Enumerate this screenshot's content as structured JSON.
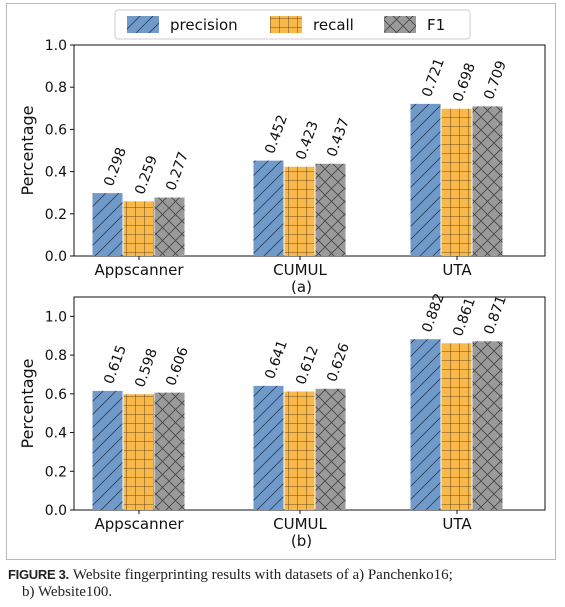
{
  "chart_data": [
    {
      "type": "bar",
      "categories": [
        "Appscanner",
        "CUMUL",
        "UTA"
      ],
      "series": [
        {
          "name": "precision",
          "values": [
            0.298,
            0.452,
            0.721
          ]
        },
        {
          "name": "recall",
          "values": [
            0.259,
            0.423,
            0.698
          ]
        },
        {
          "name": "F1",
          "values": [
            0.277,
            0.437,
            0.709
          ]
        }
      ],
      "value_labels": [
        [
          "0.298",
          "0.452",
          "0.721"
        ],
        [
          "0.259",
          "0.423",
          "0.698"
        ],
        [
          "0.277",
          "0.437",
          "0.709"
        ]
      ],
      "subtitle": "(a)",
      "ylabel": "Percentage",
      "ylim": [
        0,
        1.0
      ],
      "yticks": [
        "0.0",
        "0.2",
        "0.4",
        "0.6",
        "0.8",
        "1.0"
      ],
      "legend_position": "top-center",
      "colors": [
        "#6f9ac9",
        "#f9b94a",
        "#9a9a9a"
      ],
      "hatches": [
        "diagonal",
        "grid",
        "cross-diagonal"
      ]
    },
    {
      "type": "bar",
      "categories": [
        "Appscanner",
        "CUMUL",
        "UTA"
      ],
      "series": [
        {
          "name": "precision",
          "values": [
            0.615,
            0.641,
            0.882
          ]
        },
        {
          "name": "recall",
          "values": [
            0.598,
            0.612,
            0.861
          ]
        },
        {
          "name": "F1",
          "values": [
            0.606,
            0.626,
            0.871
          ]
        }
      ],
      "value_labels": [
        [
          "0.615",
          "0.641",
          "0.882"
        ],
        [
          "0.598",
          "0.612",
          "0.861"
        ],
        [
          "0.606",
          "0.626",
          "0.871"
        ]
      ],
      "subtitle": "(b)",
      "ylabel": "Percentage",
      "ylim": [
        0,
        1.1
      ],
      "yticks": [
        "0.0",
        "0.2",
        "0.4",
        "0.6",
        "0.8",
        "1.0"
      ],
      "colors": [
        "#6f9ac9",
        "#f9b94a",
        "#9a9a9a"
      ],
      "hatches": [
        "diagonal",
        "grid",
        "cross-diagonal"
      ]
    }
  ],
  "caption": {
    "label": "FIGURE 3.",
    "line1": "Website fingerprinting results with datasets of a) Panchenko16;",
    "line2": "b) Website100."
  }
}
